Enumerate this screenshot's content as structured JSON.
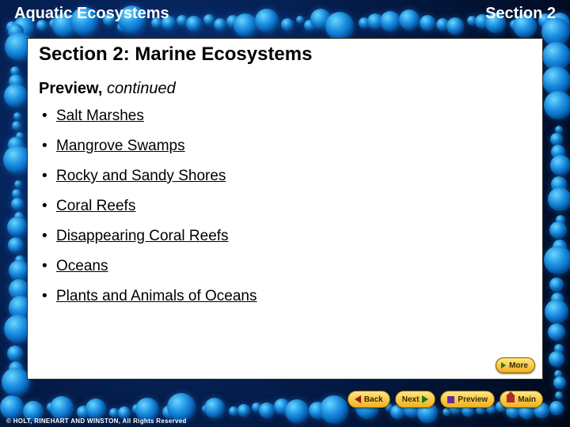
{
  "header": {
    "left": "Aquatic Ecosystems",
    "right": "Section 2"
  },
  "section_title": "Section 2: Marine Ecosystems",
  "subtitle_bold": "Preview,",
  "subtitle_italic": " continued",
  "bullets": [
    "Salt Marshes",
    "Mangrove Swamps",
    "Rocky and Sandy Shores",
    "Coral Reefs",
    "Disappearing Coral Reefs",
    "Oceans",
    "Plants and Animals of Oceans"
  ],
  "nav": {
    "back": "Back",
    "next": "Next",
    "preview": "Preview",
    "main": "Main",
    "more": "More"
  },
  "footer": "© HOLT, RINEHART AND WINSTON, All Rights Reserved",
  "colors": {
    "background": "#041c4a",
    "content_bg": "#ffffff",
    "text": "#000000",
    "header_text": "#ffffff",
    "button_bg_top": "#ffe680",
    "button_bg_bottom": "#f0b020",
    "button_border": "#8a5a00"
  },
  "bubble_sizes": [
    36,
    30,
    26,
    22,
    20,
    18,
    16,
    14,
    12,
    10
  ]
}
